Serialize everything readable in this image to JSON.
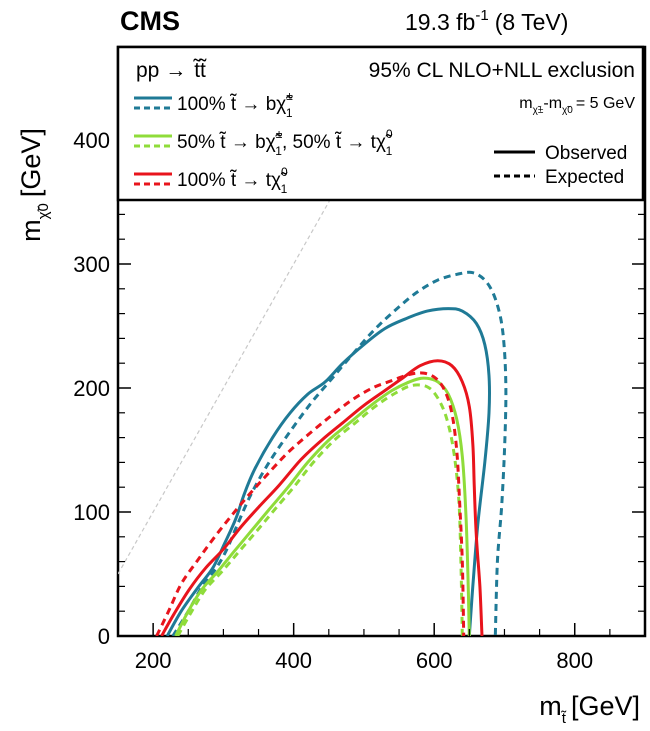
{
  "header": {
    "experiment": "CMS",
    "lumi_value": "19.3 fb",
    "lumi_exp": "-1",
    "lumi_energy": "(8 TeV)"
  },
  "legend": {
    "process": "pp →",
    "process_stops": "t̃t̃",
    "exclusion": "95% CL NLO+NLL exclusion",
    "mass_splitting": "m",
    "mass_splitting_sub1": "χ̃±",
    "mass_splitting_mid": "-m",
    "mass_splitting_sub2": "χ̃0",
    "mass_splitting_val": "= 5 GeV",
    "entries": [
      {
        "label": "100% t̃ → bχ̃",
        "sup": "±",
        "sub": "1",
        "color": "#1f7a96"
      },
      {
        "label": "50% t̃ → bχ̃",
        "sup": "±",
        "sub": "1",
        "label2": ", 50% t̃ → tχ̃",
        "sup2": "0",
        "sub2": "1",
        "color": "#8fdc3a"
      },
      {
        "label": "100% t̃ → tχ̃",
        "sup": "0",
        "sub": "1",
        "color": "#e8141c"
      }
    ],
    "observed": "Observed",
    "expected": "Expected"
  },
  "chart_data": {
    "type": "line",
    "xlabel": "m",
    "xlabel_sub": "t̃",
    "xlabel_unit": "[GeV]",
    "ylabel": "m",
    "ylabel_sub": "χ̃0",
    "ylabel_unit": "[GeV]",
    "xlim": [
      150,
      900
    ],
    "ylim": [
      0,
      475
    ],
    "xticks": [
      200,
      400,
      600,
      800
    ],
    "yticks": [
      0,
      100,
      200,
      300,
      400
    ],
    "diagonal": {
      "slope": 1,
      "offset": -100
    },
    "series": [
      {
        "id": "blue-obs",
        "style": "solid",
        "color": "#1f7a96",
        "points": [
          [
            220,
            0
          ],
          [
            240,
            20
          ],
          [
            265,
            40
          ],
          [
            285,
            55
          ],
          [
            302,
            75
          ],
          [
            318,
            95
          ],
          [
            330,
            115
          ],
          [
            345,
            135
          ],
          [
            370,
            160
          ],
          [
            395,
            180
          ],
          [
            420,
            195
          ],
          [
            445,
            205
          ],
          [
            470,
            220
          ],
          [
            500,
            235
          ],
          [
            530,
            248
          ],
          [
            560,
            256
          ],
          [
            590,
            262
          ],
          [
            620,
            264
          ],
          [
            640,
            262
          ],
          [
            660,
            252
          ],
          [
            672,
            235
          ],
          [
            678,
            210
          ],
          [
            678,
            180
          ],
          [
            672,
            140
          ],
          [
            662,
            90
          ],
          [
            655,
            40
          ],
          [
            650,
            0
          ]
        ]
      },
      {
        "id": "blue-exp",
        "style": "dashed",
        "color": "#1f7a96",
        "points": [
          [
            228,
            0
          ],
          [
            250,
            20
          ],
          [
            270,
            40
          ],
          [
            290,
            55
          ],
          [
            305,
            70
          ],
          [
            320,
            90
          ],
          [
            340,
            115
          ],
          [
            365,
            140
          ],
          [
            395,
            165
          ],
          [
            425,
            188
          ],
          [
            455,
            208
          ],
          [
            485,
            228
          ],
          [
            515,
            247
          ],
          [
            545,
            263
          ],
          [
            575,
            277
          ],
          [
            605,
            287
          ],
          [
            635,
            292
          ],
          [
            655,
            293
          ],
          [
            672,
            287
          ],
          [
            685,
            275
          ],
          [
            695,
            255
          ],
          [
            700,
            230
          ],
          [
            702,
            195
          ],
          [
            700,
            150
          ],
          [
            696,
            105
          ],
          [
            690,
            60
          ],
          [
            687,
            0
          ]
        ]
      },
      {
        "id": "green-obs",
        "style": "solid",
        "color": "#8fdc3a",
        "points": [
          [
            232,
            0
          ],
          [
            250,
            20
          ],
          [
            270,
            38
          ],
          [
            292,
            52
          ],
          [
            315,
            68
          ],
          [
            340,
            85
          ],
          [
            365,
            102
          ],
          [
            392,
            120
          ],
          [
            420,
            140
          ],
          [
            450,
            158
          ],
          [
            480,
            172
          ],
          [
            510,
            186
          ],
          [
            540,
            198
          ],
          [
            565,
            205
          ],
          [
            585,
            208
          ],
          [
            605,
            205
          ],
          [
            620,
            195
          ],
          [
            632,
            175
          ],
          [
            640,
            145
          ],
          [
            645,
            100
          ],
          [
            648,
            50
          ],
          [
            650,
            0
          ]
        ]
      },
      {
        "id": "green-exp",
        "style": "dashed",
        "color": "#8fdc3a",
        "points": [
          [
            235,
            0
          ],
          [
            255,
            20
          ],
          [
            275,
            38
          ],
          [
            298,
            52
          ],
          [
            322,
            68
          ],
          [
            348,
            85
          ],
          [
            373,
            102
          ],
          [
            400,
            120
          ],
          [
            428,
            140
          ],
          [
            458,
            158
          ],
          [
            488,
            172
          ],
          [
            518,
            186
          ],
          [
            545,
            196
          ],
          [
            568,
            202
          ],
          [
            590,
            201
          ],
          [
            605,
            192
          ],
          [
            618,
            175
          ],
          [
            628,
            148
          ],
          [
            635,
            110
          ],
          [
            638,
            60
          ],
          [
            640,
            0
          ]
        ]
      },
      {
        "id": "red-obs",
        "style": "solid",
        "color": "#e8141c",
        "points": [
          [
            212,
            0
          ],
          [
            230,
            18
          ],
          [
            252,
            38
          ],
          [
            275,
            55
          ],
          [
            300,
            70
          ],
          [
            325,
            88
          ],
          [
            352,
            105
          ],
          [
            380,
            122
          ],
          [
            410,
            142
          ],
          [
            440,
            158
          ],
          [
            470,
            172
          ],
          [
            500,
            186
          ],
          [
            530,
            198
          ],
          [
            555,
            208
          ],
          [
            580,
            218
          ],
          [
            605,
            222
          ],
          [
            625,
            218
          ],
          [
            640,
            205
          ],
          [
            650,
            185
          ],
          [
            655,
            155
          ],
          [
            657,
            120
          ],
          [
            660,
            80
          ],
          [
            665,
            40
          ],
          [
            668,
            0
          ]
        ]
      },
      {
        "id": "red-exp",
        "style": "dashed",
        "color": "#e8141c",
        "points": [
          [
            205,
            0
          ],
          [
            222,
            20
          ],
          [
            240,
            42
          ],
          [
            262,
            60
          ],
          [
            285,
            78
          ],
          [
            310,
            96
          ],
          [
            335,
            113
          ],
          [
            362,
            130
          ],
          [
            392,
            148
          ],
          [
            422,
            163
          ],
          [
            452,
            177
          ],
          [
            482,
            190
          ],
          [
            512,
            200
          ],
          [
            540,
            206
          ],
          [
            565,
            211
          ],
          [
            585,
            212
          ],
          [
            602,
            208
          ],
          [
            615,
            198
          ],
          [
            625,
            180
          ],
          [
            632,
            150
          ],
          [
            636,
            110
          ],
          [
            640,
            60
          ],
          [
            642,
            0
          ]
        ]
      }
    ]
  }
}
